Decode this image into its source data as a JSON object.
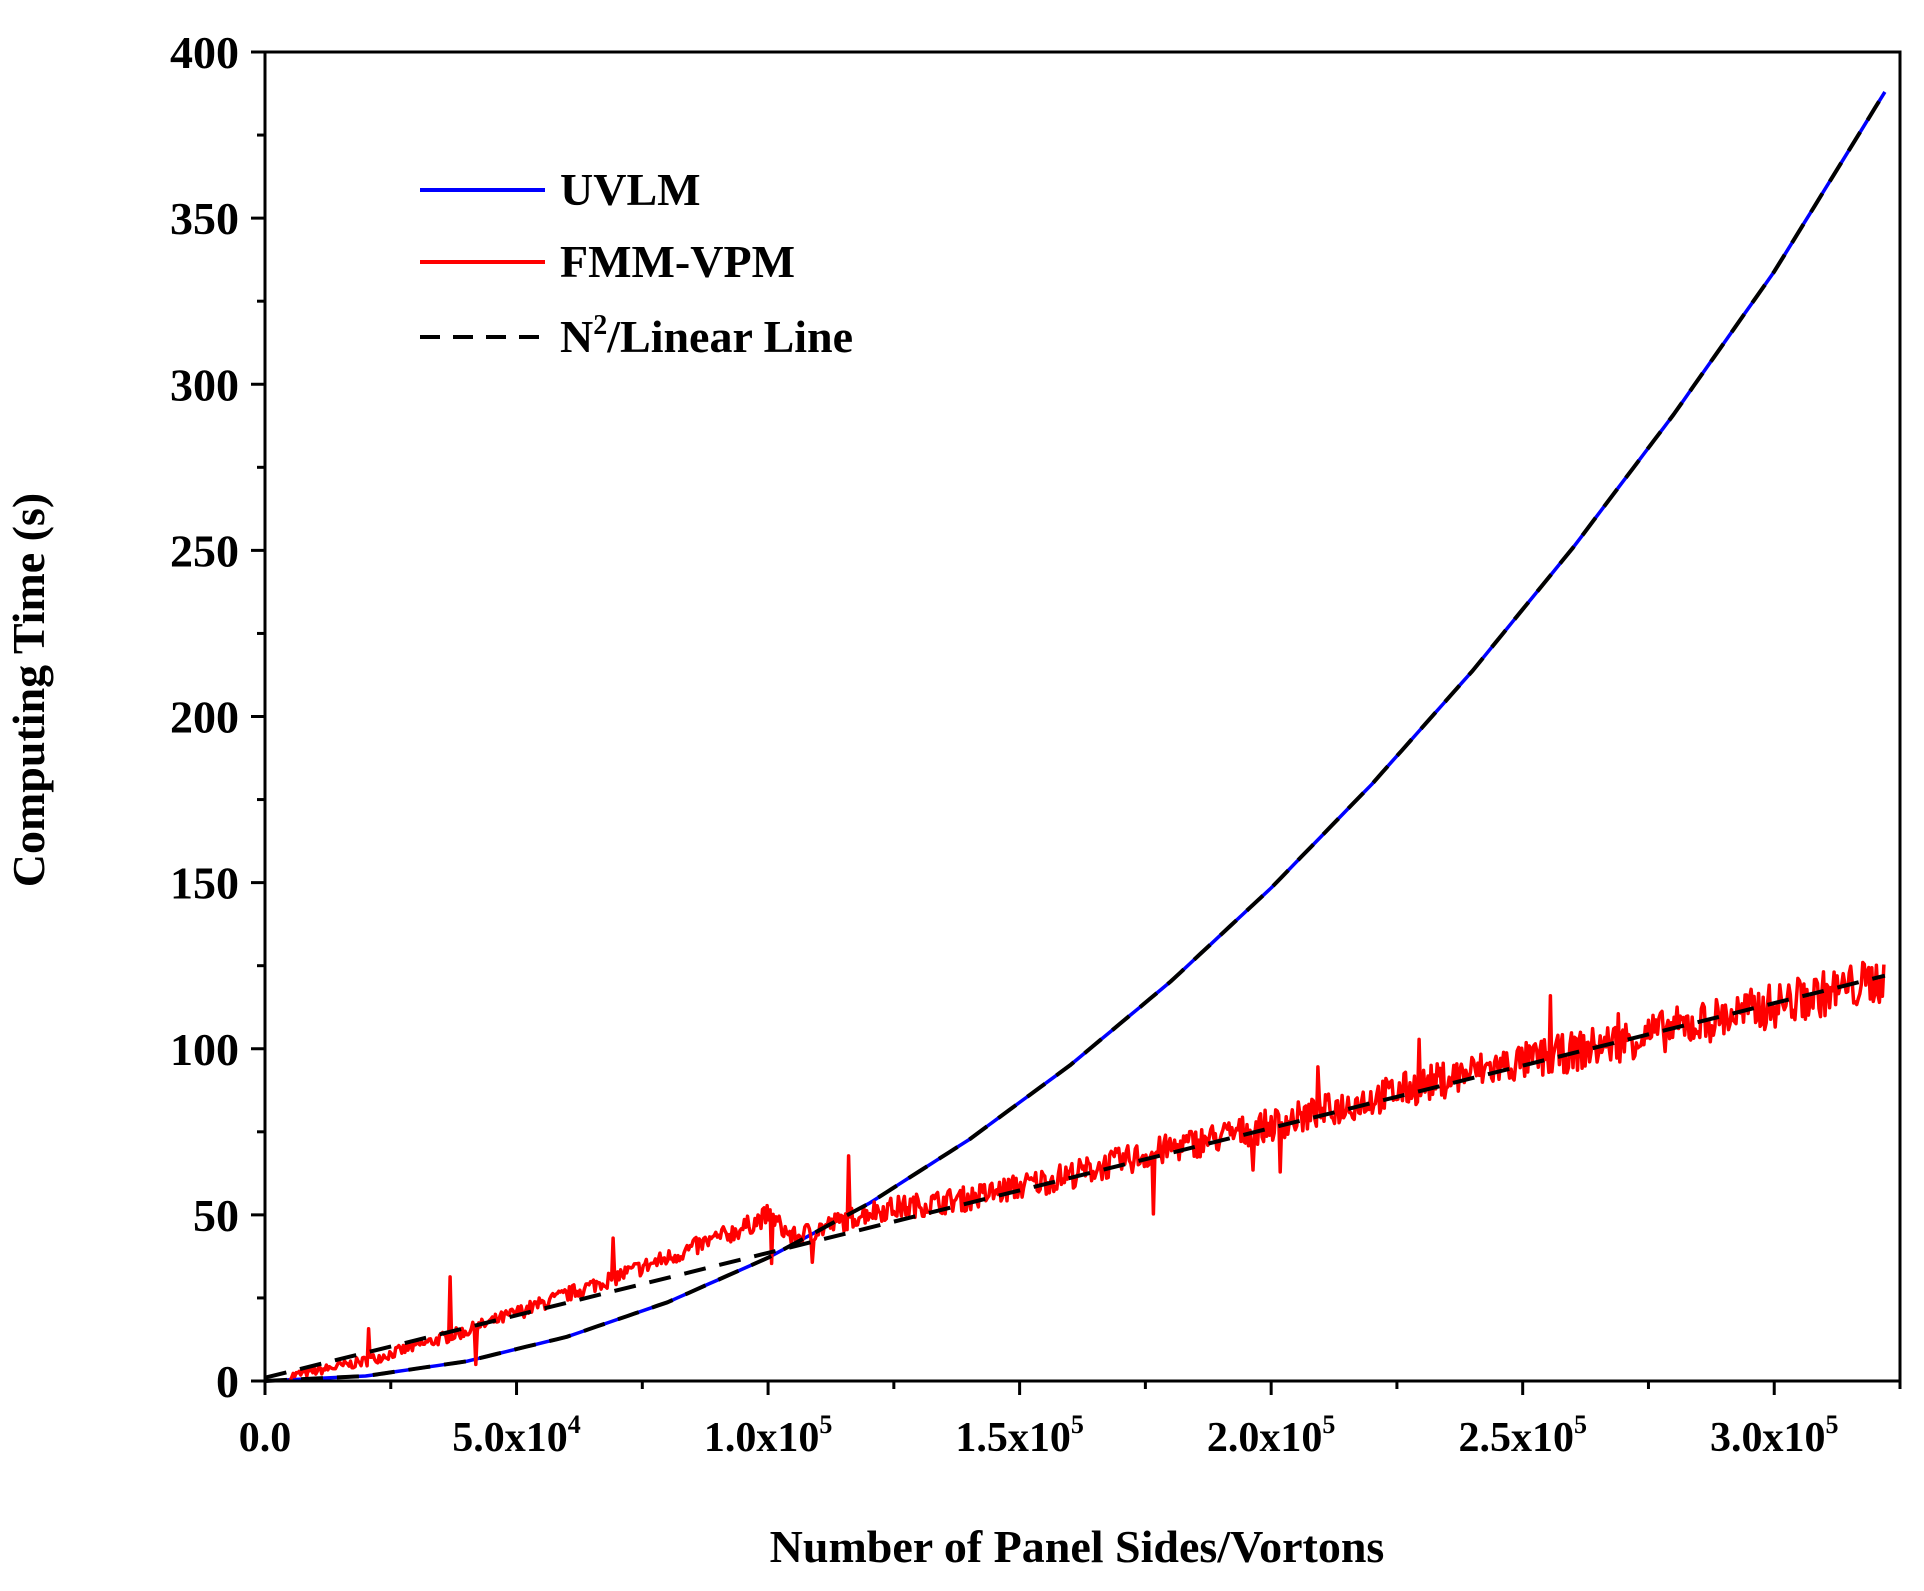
{
  "chart_data": {
    "type": "line",
    "xlabel": "Number of Panel Sides/Vortons",
    "ylabel": "Computing Time (s)",
    "xlim": [
      0,
      325000
    ],
    "ylim": [
      0,
      400
    ],
    "x_ticks": [
      {
        "value": 0,
        "mantissa": "0.0",
        "exp": ""
      },
      {
        "value": 50000,
        "mantissa": "5.0x10",
        "exp": "4"
      },
      {
        "value": 100000,
        "mantissa": "1.0x10",
        "exp": "5"
      },
      {
        "value": 150000,
        "mantissa": "1.5x10",
        "exp": "5"
      },
      {
        "value": 200000,
        "mantissa": "2.0x10",
        "exp": "5"
      },
      {
        "value": 250000,
        "mantissa": "2.5x10",
        "exp": "5"
      },
      {
        "value": 300000,
        "mantissa": "3.0x10",
        "exp": "5"
      }
    ],
    "y_ticks": [
      0,
      50,
      100,
      150,
      200,
      250,
      300,
      350,
      400
    ],
    "legend": {
      "placement": "top-left",
      "items": [
        {
          "label": "UVLM",
          "color": "#0000ff",
          "dash": "solid"
        },
        {
          "label": "FMM-VPM",
          "color": "#ff0000",
          "dash": "solid"
        },
        {
          "label": "N",
          "sup": "2",
          "suffix": "/Linear Line",
          "color": "#000000",
          "dash": "dashed"
        }
      ]
    },
    "series": [
      {
        "name": "UVLM",
        "color": "#0000ff",
        "x": [
          0,
          20000,
          40000,
          60000,
          80000,
          100000,
          120000,
          140000,
          160000,
          180000,
          200000,
          220000,
          240000,
          260000,
          280000,
          300000,
          322000
        ],
        "y": [
          0,
          1.5,
          5.9,
          13.3,
          23.7,
          37.1,
          53.4,
          72.7,
          95.0,
          120.2,
          148.4,
          179.6,
          213.7,
          250.8,
          290.9,
          333.9,
          388.0
        ]
      },
      {
        "name": "FMM-VPM",
        "color": "#ff0000",
        "x": [
          0,
          20000,
          40000,
          60000,
          80000,
          95000,
          100000,
          105000,
          120000,
          140000,
          160000,
          180000,
          200000,
          220000,
          240000,
          260000,
          280000,
          300000,
          322000
        ],
        "y": [
          0,
          6,
          15,
          26,
          37,
          46,
          50,
          43,
          51,
          55,
          62,
          70,
          77,
          85,
          93,
          99,
          106,
          113,
          121
        ]
      },
      {
        "name": "N2 fit",
        "color": "#000000",
        "x": [
          0,
          20000,
          40000,
          60000,
          80000,
          100000,
          120000,
          140000,
          160000,
          180000,
          200000,
          220000,
          240000,
          260000,
          280000,
          300000,
          322000
        ],
        "y": [
          0,
          1.5,
          5.9,
          13.3,
          23.7,
          37.1,
          53.4,
          72.7,
          95.0,
          120.2,
          148.4,
          179.6,
          213.7,
          250.8,
          290.9,
          333.9,
          388.0
        ]
      },
      {
        "name": "Linear fit",
        "color": "#000000",
        "x": [
          0,
          322000
        ],
        "y": [
          1,
          122
        ]
      }
    ]
  }
}
